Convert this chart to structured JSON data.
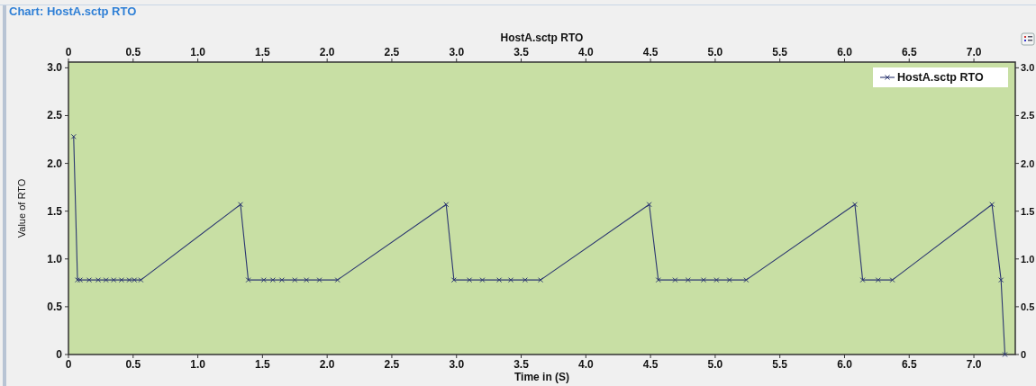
{
  "chart_data": {
    "type": "line",
    "title": "Chart: HostA.sctp RTO",
    "xlabel": "Time in (S)",
    "ylabel": "Value of RTO",
    "x2label": "HostA.sctp RTO",
    "xlim": [
      0,
      7.32
    ],
    "xticks": [
      {
        "value": 0,
        "label": "0"
      },
      {
        "value": 0.5,
        "label": "0.5"
      },
      {
        "value": 1,
        "label": "1.0"
      },
      {
        "value": 1.5,
        "label": "1.5"
      },
      {
        "value": 2,
        "label": "2.0"
      },
      {
        "value": 2.5,
        "label": "2.5"
      },
      {
        "value": 3,
        "label": "3.0"
      },
      {
        "value": 3.5,
        "label": "3.5"
      },
      {
        "value": 4,
        "label": "4.0"
      },
      {
        "value": 4.5,
        "label": "4.5"
      },
      {
        "value": 5,
        "label": "5.0"
      },
      {
        "value": 5.5,
        "label": "5.5"
      },
      {
        "value": 6,
        "label": "6.0"
      },
      {
        "value": 6.5,
        "label": "6.5"
      },
      {
        "value": 7,
        "label": "7.0"
      }
    ],
    "x2lim": [
      0,
      7.32
    ],
    "x2ticks": [
      {
        "value": 0,
        "label": "0"
      },
      {
        "value": 0.5,
        "label": "0.5"
      },
      {
        "value": 1,
        "label": "1.0"
      },
      {
        "value": 1.5,
        "label": "1.5"
      },
      {
        "value": 2,
        "label": "2.0"
      },
      {
        "value": 2.5,
        "label": "2.5"
      },
      {
        "value": 3,
        "label": "3.0"
      },
      {
        "value": 3.5,
        "label": "3.5"
      },
      {
        "value": 4,
        "label": "4.0"
      },
      {
        "value": 4.5,
        "label": "4.5"
      },
      {
        "value": 5,
        "label": "5.0"
      },
      {
        "value": 5.5,
        "label": "5.5"
      },
      {
        "value": 6,
        "label": "6.0"
      },
      {
        "value": 6.5,
        "label": "6.5"
      },
      {
        "value": 7,
        "label": "7.0"
      }
    ],
    "ylim": [
      0,
      3.06
    ],
    "yticks": [
      {
        "value": 0,
        "label": "0"
      },
      {
        "value": 0.5,
        "label": "0.5"
      },
      {
        "value": 1,
        "label": "1.0"
      },
      {
        "value": 1.5,
        "label": "1.5"
      },
      {
        "value": 2,
        "label": "2.0"
      },
      {
        "value": 2.5,
        "label": "2.5"
      },
      {
        "value": 3,
        "label": "3.0"
      }
    ],
    "y2lim": [
      0,
      3.06
    ],
    "y2ticks": [
      {
        "value": 0,
        "label": "0"
      },
      {
        "value": 0.5,
        "label": "0.5"
      },
      {
        "value": 1,
        "label": "1.0"
      },
      {
        "value": 1.5,
        "label": "1.5"
      },
      {
        "value": 2,
        "label": "2.0"
      },
      {
        "value": 2.5,
        "label": "2.5"
      },
      {
        "value": 3,
        "label": "3.0"
      }
    ],
    "legend": "top right",
    "marker": "cross",
    "line_style": "solid",
    "grid": false,
    "series": [
      {
        "name": "HostA.sctp RTO",
        "color": "#2b3670",
        "x": [
          0.04,
          0.07,
          0.09,
          0.16,
          0.23,
          0.29,
          0.35,
          0.41,
          0.47,
          0.51,
          0.56,
          1.33,
          1.39,
          1.51,
          1.58,
          1.65,
          1.75,
          1.84,
          1.94,
          2.08,
          2.92,
          2.98,
          3.1,
          3.2,
          3.33,
          3.42,
          3.53,
          3.65,
          4.49,
          4.56,
          4.69,
          4.79,
          4.91,
          5.01,
          5.11,
          5.24,
          6.08,
          6.14,
          6.26,
          6.37,
          7.14,
          7.21,
          7.24
        ],
        "values": [
          2.28,
          0.78,
          0.78,
          0.78,
          0.78,
          0.78,
          0.78,
          0.78,
          0.78,
          0.78,
          0.78,
          1.57,
          0.78,
          0.78,
          0.78,
          0.78,
          0.78,
          0.78,
          0.78,
          0.78,
          1.57,
          0.78,
          0.78,
          0.78,
          0.78,
          0.78,
          0.78,
          0.78,
          1.57,
          0.78,
          0.78,
          0.78,
          0.78,
          0.78,
          0.78,
          0.78,
          1.57,
          0.78,
          0.78,
          0.78,
          1.57,
          0.78,
          0
        ]
      }
    ]
  }
}
